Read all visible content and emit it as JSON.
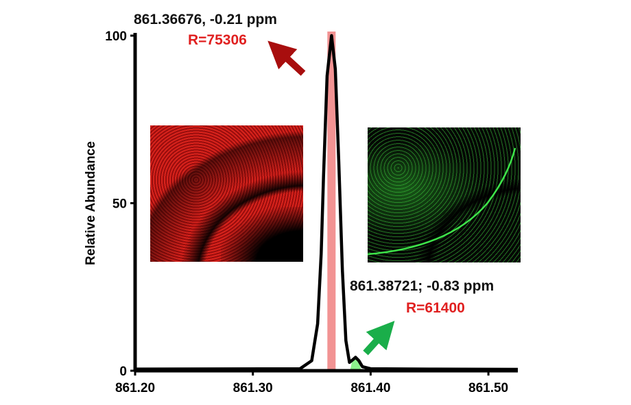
{
  "chart_data": {
    "type": "line",
    "xlabel": "",
    "ylabel": "Relative Abundance",
    "xlim": [
      861.2,
      861.525
    ],
    "ylim": [
      0,
      100
    ],
    "x_ticks": [
      "861.20",
      "861.30",
      "861.40",
      "861.50"
    ],
    "y_ticks": [
      "0",
      "50",
      "100"
    ],
    "grid": false,
    "series": [
      {
        "x": [
          861.2,
          861.34,
          861.35,
          861.355,
          861.358,
          861.36,
          861.363,
          861.3668,
          861.37,
          861.373,
          861.376,
          861.379,
          861.382,
          861.3845,
          861.3872,
          861.39,
          861.393,
          861.4,
          861.45,
          861.525
        ],
        "y": [
          0.5,
          0.6,
          3,
          14,
          35,
          58,
          88,
          100,
          90,
          62,
          30,
          9,
          2.5,
          3.2,
          4,
          3,
          1.2,
          0.6,
          0.5,
          0.4
        ]
      }
    ],
    "peaks": [
      {
        "mz": 861.36676,
        "label": "861.36676, -0.21 ppm",
        "resolution": "R=75306",
        "color": "#f08080",
        "highlight_height": 100
      },
      {
        "mz": 861.38721,
        "label": "861.38721; -0.83 ppm",
        "resolution": "R=61400",
        "color": "#80ee80",
        "highlight_height": 4
      }
    ],
    "annotations": [
      {
        "type": "arrow",
        "color": "#a80e0e",
        "points_to": "peak 1"
      },
      {
        "type": "arrow",
        "color": "#1aae4a",
        "points_to": "peak 2"
      }
    ],
    "insets": [
      {
        "name": "red-ion-image",
        "color": "#d21414"
      },
      {
        "name": "green-ion-image",
        "color": "#2fd23a"
      }
    ]
  }
}
